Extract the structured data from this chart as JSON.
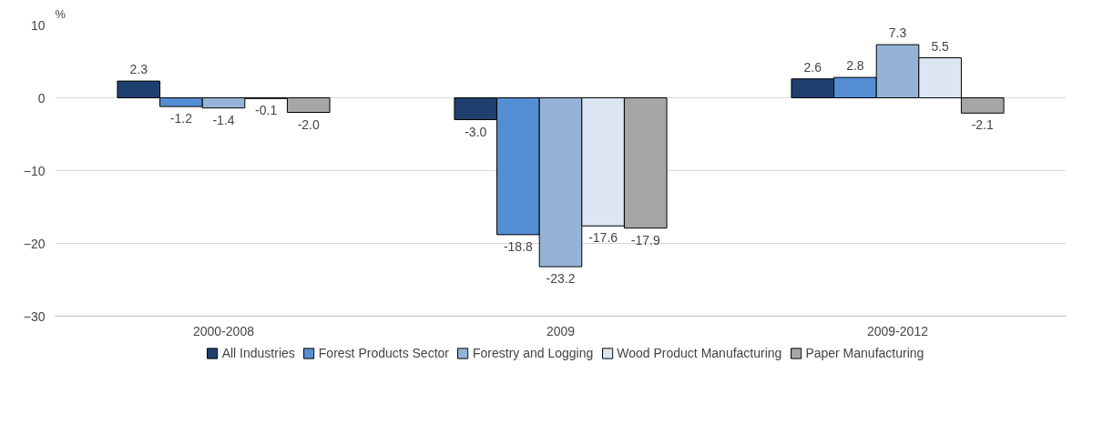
{
  "chart_data": {
    "type": "bar",
    "ylabel": "%",
    "categories": [
      "2000-2008",
      "2009",
      "2009-2012"
    ],
    "series": [
      {
        "name": "All Industries",
        "color": "#1f3f6e",
        "values": [
          2.3,
          -3.0,
          2.6
        ],
        "value_labels": [
          "2.3",
          "-3.0",
          "2.6"
        ]
      },
      {
        "name": "Forest Products Sector",
        "color": "#558ed5",
        "values": [
          -1.2,
          -18.8,
          2.8
        ],
        "value_labels": [
          "-1.2",
          "-18.8",
          "2.8"
        ]
      },
      {
        "name": "Forestry and Logging",
        "color": "#95b3d7",
        "values": [
          -1.4,
          -23.2,
          7.3
        ],
        "value_labels": [
          "-1.4",
          "-23.2",
          "7.3"
        ]
      },
      {
        "name": "Wood Product Manufacturing",
        "color": "#dce6f2",
        "values": [
          -0.1,
          -17.6,
          5.5
        ],
        "value_labels": [
          "-0.1",
          "-17.6",
          "5.5"
        ]
      },
      {
        "name": "Paper Manufacturing",
        "color": "#a6a6a6",
        "values": [
          -2.0,
          -17.9,
          -2.1
        ],
        "value_labels": [
          "-2.0",
          "-17.9",
          "-2.1"
        ]
      }
    ],
    "ylim": [
      -30,
      10
    ],
    "yticks": [
      -30,
      -20,
      -10,
      0,
      10
    ],
    "grid": "y",
    "legend": "bottom"
  }
}
